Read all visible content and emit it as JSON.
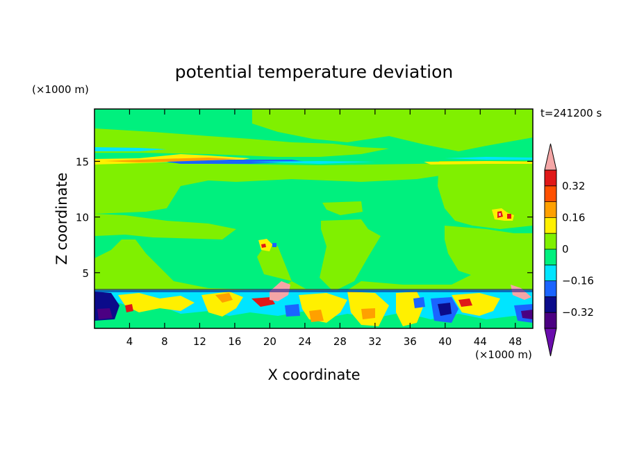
{
  "chart_data": {
    "type": "heatmap",
    "title": "potential temperature deviation",
    "xlabel": "X coordinate",
    "ylabel": "Z coordinate",
    "x_unit": "(×1000 m)",
    "y_unit": "(×1000 m)",
    "time_label": "t=241200 s",
    "xlim": [
      0,
      50
    ],
    "ylim": [
      0,
      19.7
    ],
    "x_ticks": [
      4,
      8,
      12,
      16,
      20,
      24,
      28,
      32,
      36,
      40,
      44,
      48
    ],
    "y_ticks": [
      5,
      10,
      15
    ],
    "colorbar": {
      "levels": [
        -0.4,
        -0.32,
        -0.24,
        -0.16,
        -0.08,
        0,
        0.08,
        0.16,
        0.24,
        0.32,
        0.4
      ],
      "tick_labels": [
        "0.32",
        "0.16",
        "0",
        "−0.16",
        "−0.32"
      ],
      "tick_values": [
        0.32,
        0.16,
        0,
        -0.16,
        -0.32
      ],
      "colors_low_to_high": [
        "#4b0082",
        "#0b0b8a",
        "#1a64ff",
        "#00e5ff",
        "#00f07e",
        "#80f000",
        "#fff000",
        "#ffa000",
        "#ff5000",
        "#e01818"
      ],
      "under_color": "#6a0dad",
      "over_color": "#f4a6a6"
    },
    "field_summary": {
      "background": "#00f07e",
      "upper_region_value": 0.04,
      "boundary_layer_top": 3.5,
      "tropopause_layer": 15.2
    }
  }
}
